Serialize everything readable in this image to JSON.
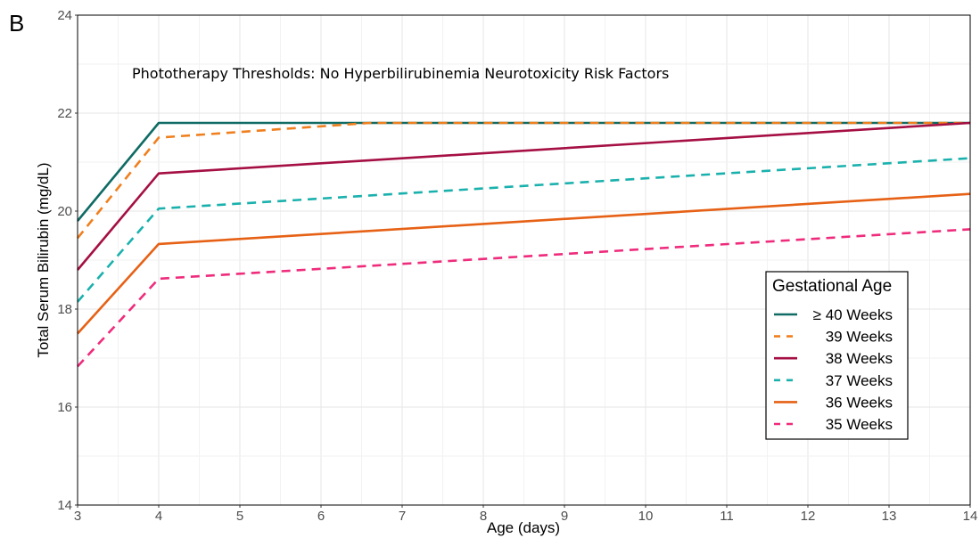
{
  "chart_data": {
    "type": "line",
    "panel_label": "B",
    "annotation": "Phototherapy Thresholds:  No Hyperbilirubinemia Neurotoxicity Risk Factors",
    "xlabel": "Age (days)",
    "ylabel": "Total Serum Bilirubin (mg/dL)",
    "xlim": [
      3,
      14
    ],
    "ylim": [
      14,
      24
    ],
    "x_ticks": [
      3,
      4,
      5,
      6,
      7,
      8,
      9,
      10,
      11,
      12,
      13,
      14
    ],
    "y_ticks": [
      14,
      16,
      18,
      20,
      22,
      24
    ],
    "grid": true,
    "legend": {
      "title": "Gestational Age",
      "placement": "right"
    },
    "series": [
      {
        "name": "≥ 40 Weeks",
        "color": "#0f6b64",
        "dash": "solid",
        "x": [
          3,
          4,
          14
        ],
        "y": [
          19.8,
          21.8,
          21.8
        ]
      },
      {
        "name": "39 Weeks",
        "color": "#f07f1e",
        "dash": "dashed",
        "x": [
          3,
          4,
          6.6,
          14
        ],
        "y": [
          19.45,
          21.5,
          21.8,
          21.8
        ]
      },
      {
        "name": "38 Weeks",
        "color": "#a50f43",
        "dash": "solid",
        "x": [
          3,
          4,
          14
        ],
        "y": [
          18.8,
          20.77,
          21.8
        ]
      },
      {
        "name": "37 Weeks",
        "color": "#1ab1ad",
        "dash": "dashed",
        "x": [
          3,
          4,
          14
        ],
        "y": [
          18.15,
          20.05,
          21.08
        ]
      },
      {
        "name": "36 Weeks",
        "color": "#e66115",
        "dash": "solid",
        "x": [
          3,
          4,
          14
        ],
        "y": [
          17.5,
          19.33,
          20.35
        ]
      },
      {
        "name": "35 Weeks",
        "color": "#ef2b7c",
        "dash": "dashed",
        "x": [
          3,
          4,
          14
        ],
        "y": [
          16.83,
          18.62,
          19.63
        ]
      }
    ]
  }
}
